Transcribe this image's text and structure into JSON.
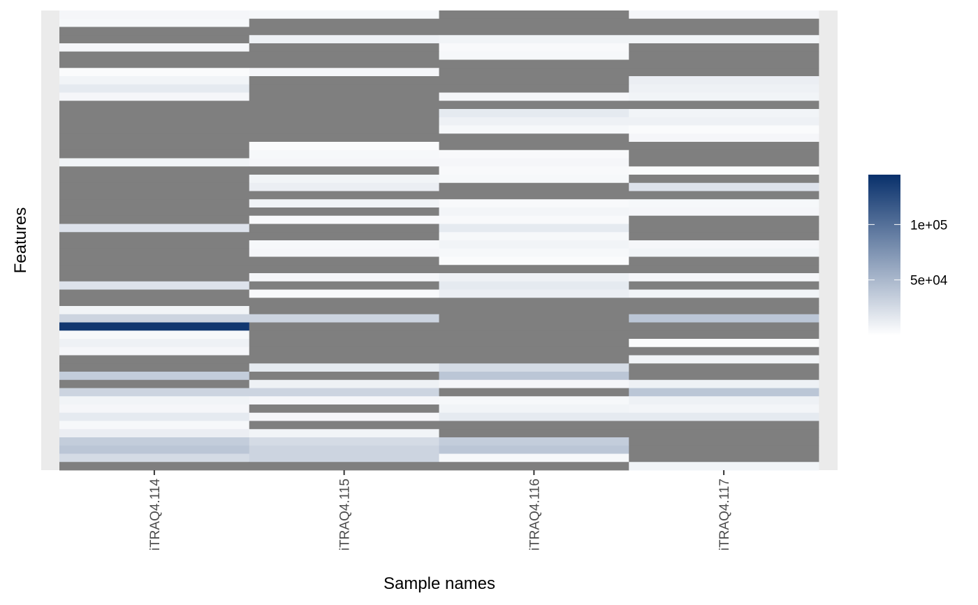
{
  "chart_data": {
    "type": "heatmap",
    "xlabel": "Sample names",
    "ylabel": "Features",
    "x": [
      "iTRAQ4.114",
      "iTRAQ4.115",
      "iTRAQ4.116",
      "iTRAQ4.117"
    ],
    "y_tick_labels_shown": false,
    "missing_color": "#7f7f7f",
    "panel_background": "#ebebeb",
    "low_color": "#ffffff",
    "high_color": "#08306b",
    "value_range": [
      0,
      145000
    ],
    "legend": {
      "position": "right",
      "ticks": [
        50000,
        100000
      ],
      "tick_labels": [
        "5e+04",
        "1e+05"
      ]
    },
    "values": [
      [
        6000,
        5000,
        null,
        6000
      ],
      [
        5000,
        null,
        null,
        null
      ],
      [
        null,
        null,
        null,
        null
      ],
      [
        null,
        10000,
        8000,
        8000
      ],
      [
        6000,
        null,
        4000,
        null
      ],
      [
        null,
        null,
        5000,
        null
      ],
      [
        null,
        null,
        null,
        null
      ],
      [
        3000,
        6000,
        null,
        null
      ],
      [
        8000,
        null,
        null,
        12000
      ],
      [
        15000,
        null,
        null,
        10000
      ],
      [
        6000,
        null,
        6000,
        8000
      ],
      [
        null,
        null,
        null,
        null
      ],
      [
        null,
        null,
        15000,
        8000
      ],
      [
        null,
        null,
        10000,
        10000
      ],
      [
        null,
        null,
        5000,
        3000
      ],
      [
        null,
        null,
        null,
        6000
      ],
      [
        null,
        3000,
        null,
        null
      ],
      [
        null,
        5000,
        4000,
        null
      ],
      [
        8000,
        6000,
        6000,
        null
      ],
      [
        null,
        null,
        4000,
        3000
      ],
      [
        null,
        8000,
        5000,
        null
      ],
      [
        null,
        12000,
        null,
        20000
      ],
      [
        null,
        null,
        null,
        null
      ],
      [
        null,
        8000,
        4000,
        5000
      ],
      [
        null,
        null,
        7000,
        6000
      ],
      [
        null,
        4000,
        4000,
        null
      ],
      [
        20000,
        null,
        15000,
        null
      ],
      [
        null,
        null,
        5000,
        null
      ],
      [
        null,
        5000,
        8000,
        6000
      ],
      [
        null,
        6000,
        5000,
        8000
      ],
      [
        null,
        null,
        3000,
        null
      ],
      [
        null,
        null,
        null,
        null
      ],
      [
        null,
        6000,
        10000,
        6000
      ],
      [
        20000,
        null,
        15000,
        null
      ],
      [
        null,
        4000,
        12000,
        8000
      ],
      [
        null,
        null,
        null,
        null
      ],
      [
        8000,
        null,
        null,
        null
      ],
      [
        30000,
        30000,
        null,
        40000
      ],
      [
        140000,
        null,
        null,
        null
      ],
      [
        5000,
        null,
        null,
        null
      ],
      [
        10000,
        null,
        null,
        3000
      ],
      [
        6000,
        null,
        null,
        null
      ],
      [
        null,
        null,
        null,
        8000
      ],
      [
        null,
        15000,
        25000,
        null
      ],
      [
        35000,
        null,
        40000,
        null
      ],
      [
        null,
        10000,
        6000,
        10000
      ],
      [
        30000,
        30000,
        null,
        40000
      ],
      [
        8000,
        6000,
        5000,
        10000
      ],
      [
        6000,
        null,
        8000,
        7000
      ],
      [
        15000,
        6000,
        15000,
        15000
      ],
      [
        5000,
        null,
        null,
        null
      ],
      [
        12000,
        8000,
        null,
        null
      ],
      [
        35000,
        25000,
        35000,
        null
      ],
      [
        40000,
        30000,
        40000,
        null
      ],
      [
        25000,
        30000,
        5000,
        null
      ],
      [
        null,
        null,
        null,
        8000
      ]
    ]
  }
}
